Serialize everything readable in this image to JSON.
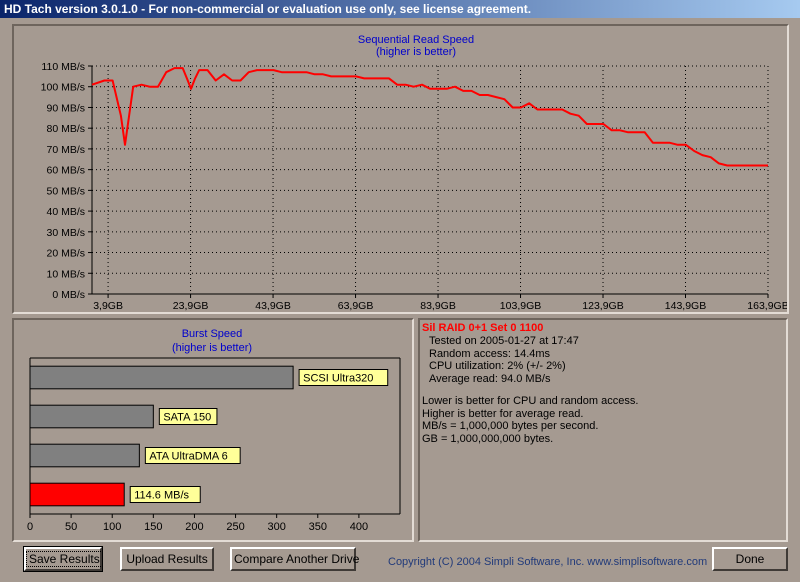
{
  "window": {
    "title": "HD Tach version 3.0.1.0  - For non-commercial or evaluation use only, see license agreement."
  },
  "colors": {
    "series": "#ff0000",
    "chart_title": "#0000cc",
    "bar_grey": "#808080",
    "bar_highlight": "#ff0000",
    "label_bg": "#ffff99"
  },
  "info": {
    "title": "Sil RAID 0+1 Set 0 1100",
    "lines": [
      "Tested on 2005-01-27 at 17:47",
      "Random access: 14.4ms",
      "CPU utilization: 2% (+/- 2%)",
      "Average read: 94.0 MB/s"
    ],
    "notes": [
      "Lower is better for CPU and random access.",
      "Higher is better for average read.",
      "MB/s = 1,000,000 bytes per second.",
      "GB = 1,000,000,000 bytes."
    ]
  },
  "buttons": {
    "save": "Save Results",
    "upload": "Upload Results",
    "compare": "Compare Another Drive",
    "done": "Done"
  },
  "copyright": "Copyright (C) 2004 Simpli Software, Inc. www.simplisoftware.com",
  "chart_data": [
    {
      "type": "line",
      "title": "Sequential Read Speed",
      "subtitle": "(higher is better)",
      "ylim": [
        0,
        110
      ],
      "y_ticks": [
        0,
        10,
        20,
        30,
        40,
        50,
        60,
        70,
        80,
        90,
        100,
        110
      ],
      "y_tick_labels": [
        "0 MB/s",
        "10 MB/s",
        "20 MB/s",
        "30 MB/s",
        "40 MB/s",
        "50 MB/s",
        "60 MB/s",
        "70 MB/s",
        "80 MB/s",
        "90 MB/s",
        "100 MB/s",
        "110 MB/s"
      ],
      "xlim": [
        0,
        163.9
      ],
      "x_ticks": [
        3.9,
        23.9,
        43.9,
        63.9,
        83.9,
        103.9,
        123.9,
        143.9,
        163.9
      ],
      "x_tick_labels": [
        "3,9GB",
        "23,9GB",
        "43,9GB",
        "63,9GB",
        "83,9GB",
        "103,9GB",
        "123,9GB",
        "143,9GB",
        "163,9GB"
      ],
      "grid": true,
      "series": [
        {
          "x": [
            0,
            3,
            5,
            7,
            8,
            10,
            12,
            14,
            16,
            18,
            20,
            22,
            23,
            24,
            25,
            26,
            28,
            30,
            32,
            34,
            36,
            38,
            40,
            42,
            44,
            46,
            48,
            50,
            52,
            54,
            56,
            58,
            60,
            62,
            64,
            66,
            68,
            70,
            72,
            74,
            76,
            78,
            80,
            82,
            84,
            86,
            88,
            90,
            92,
            94,
            96,
            98,
            100,
            102,
            104,
            106,
            108,
            110,
            112,
            114,
            116,
            118,
            120,
            122,
            124,
            126,
            128,
            130,
            132,
            134,
            136,
            138,
            140,
            142,
            144,
            146,
            148,
            150,
            152,
            154,
            156,
            158,
            160,
            162,
            163.9
          ],
          "y": [
            101,
            103,
            103,
            86,
            72,
            100,
            101,
            100,
            100,
            107,
            109,
            109,
            104,
            99,
            104,
            108,
            108,
            103,
            106,
            103,
            103,
            107,
            108,
            108,
            108,
            107,
            107,
            107,
            107,
            106,
            106,
            105,
            105,
            105,
            105,
            104,
            104,
            104,
            104,
            101,
            101,
            100,
            101,
            99,
            99,
            99,
            100,
            98,
            98,
            96,
            96,
            95,
            94,
            90,
            90,
            92,
            89,
            89,
            89,
            89,
            87,
            86,
            82,
            82,
            82,
            79,
            79,
            78,
            78,
            78,
            73,
            73,
            73,
            72,
            72,
            69,
            67,
            66,
            63,
            62,
            62,
            62,
            62,
            62,
            62
          ]
        }
      ]
    },
    {
      "type": "bar",
      "orientation": "horizontal",
      "title": "Burst Speed",
      "subtitle": "(higher is better)",
      "xlim": [
        0,
        450
      ],
      "x_ticks": [
        0,
        50,
        100,
        150,
        200,
        250,
        300,
        350,
        400
      ],
      "categories": [
        "SCSI Ultra320",
        "SATA 150",
        "ATA UltraDMA 6",
        "114.6 MB/s"
      ],
      "values": [
        320,
        150,
        133,
        114.6
      ],
      "highlight_index": 3
    }
  ]
}
